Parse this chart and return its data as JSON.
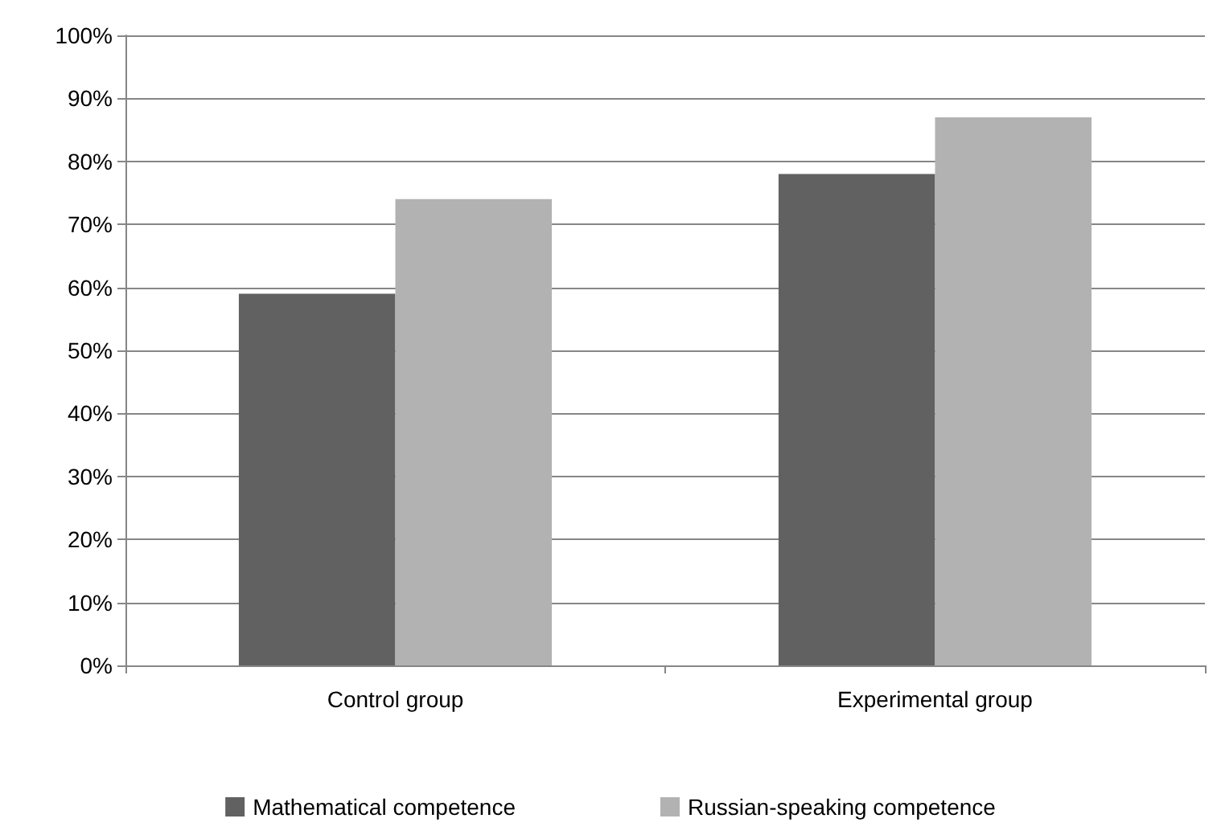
{
  "chart_data": {
    "type": "bar",
    "categories": [
      "Control group",
      "Experimental group"
    ],
    "series": [
      {
        "name": "Mathematical competence",
        "color": "#616161",
        "values": [
          59,
          78
        ]
      },
      {
        "name": "Russian-speaking competence",
        "color": "#b2b2b2",
        "values": [
          74,
          87
        ]
      }
    ],
    "ylim": [
      0,
      100
    ],
    "yticks": [
      {
        "value": 0,
        "label": "0%"
      },
      {
        "value": 10,
        "label": "10%"
      },
      {
        "value": 20,
        "label": "20%"
      },
      {
        "value": 30,
        "label": "30%"
      },
      {
        "value": 40,
        "label": "40%"
      },
      {
        "value": 50,
        "label": "50%"
      },
      {
        "value": 60,
        "label": "60%"
      },
      {
        "value": 70,
        "label": "70%"
      },
      {
        "value": 80,
        "label": "80%"
      },
      {
        "value": 90,
        "label": "90%"
      },
      {
        "value": 100,
        "label": "100%"
      }
    ],
    "grid": "y",
    "legend": "bottom"
  }
}
